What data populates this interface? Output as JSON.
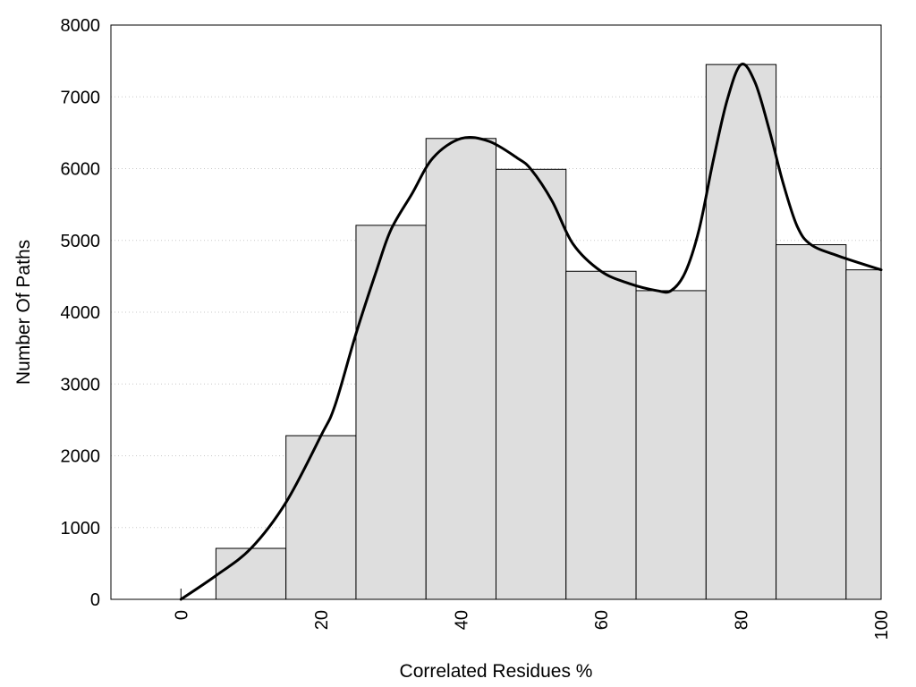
{
  "chart_data": {
    "type": "bar",
    "xlabel": "Correlated Residues %",
    "ylabel": "Number Of Paths",
    "xlim": [
      -10,
      100
    ],
    "ylim": [
      0,
      8000
    ],
    "x_ticks": [
      "0",
      "20",
      "40",
      "60",
      "80",
      "100"
    ],
    "y_ticks": [
      "0",
      "1000",
      "2000",
      "3000",
      "4000",
      "5000",
      "6000",
      "7000",
      "8000"
    ],
    "grid": "horizontal dotted",
    "bin_width": 10,
    "bars": [
      {
        "x": 0,
        "value": 0
      },
      {
        "x": 10,
        "value": 710
      },
      {
        "x": 20,
        "value": 2280
      },
      {
        "x": 30,
        "value": 5210
      },
      {
        "x": 40,
        "value": 6420
      },
      {
        "x": 50,
        "value": 5990
      },
      {
        "x": 60,
        "value": 4570
      },
      {
        "x": 70,
        "value": 4300
      },
      {
        "x": 80,
        "value": 7450
      },
      {
        "x": 90,
        "value": 4940
      },
      {
        "x": 100,
        "value": 4590
      }
    ],
    "smooth_curve": [
      {
        "x": 0,
        "y": 0
      },
      {
        "x": 5,
        "y": 330
      },
      {
        "x": 10,
        "y": 710
      },
      {
        "x": 15,
        "y": 1350
      },
      {
        "x": 20,
        "y": 2280
      },
      {
        "x": 22,
        "y": 2700
      },
      {
        "x": 25,
        "y": 3700
      },
      {
        "x": 28,
        "y": 4600
      },
      {
        "x": 30,
        "y": 5150
      },
      {
        "x": 33,
        "y": 5650
      },
      {
        "x": 36,
        "y": 6150
      },
      {
        "x": 40,
        "y": 6420
      },
      {
        "x": 44,
        "y": 6380
      },
      {
        "x": 48,
        "y": 6150
      },
      {
        "x": 50,
        "y": 5990
      },
      {
        "x": 53,
        "y": 5550
      },
      {
        "x": 56,
        "y": 4950
      },
      {
        "x": 60,
        "y": 4570
      },
      {
        "x": 64,
        "y": 4400
      },
      {
        "x": 68,
        "y": 4300
      },
      {
        "x": 70,
        "y": 4300
      },
      {
        "x": 72,
        "y": 4550
      },
      {
        "x": 74,
        "y": 5150
      },
      {
        "x": 76,
        "y": 6100
      },
      {
        "x": 78,
        "y": 6950
      },
      {
        "x": 80,
        "y": 7450
      },
      {
        "x": 82,
        "y": 7200
      },
      {
        "x": 84,
        "y": 6550
      },
      {
        "x": 86,
        "y": 5800
      },
      {
        "x": 88,
        "y": 5200
      },
      {
        "x": 90,
        "y": 4940
      },
      {
        "x": 94,
        "y": 4780
      },
      {
        "x": 100,
        "y": 4590
      }
    ],
    "colors": {
      "bar_fill": "#dedede",
      "bar_stroke": "#000000",
      "curve": "#000000",
      "grid": "#c8c8c8"
    }
  }
}
